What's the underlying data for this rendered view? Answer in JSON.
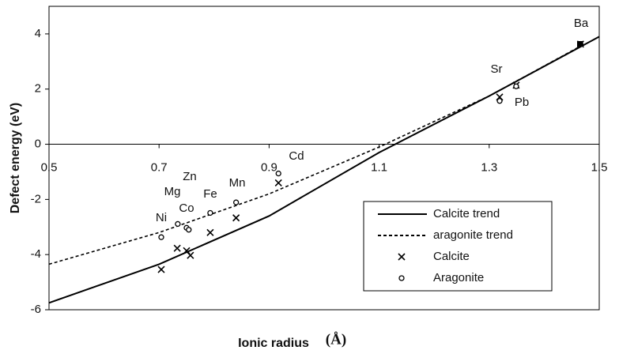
{
  "chart_data": {
    "type": "scatter",
    "xlabel": "Ionic radius",
    "xlabel_unit": "(Å)",
    "ylabel": "Defect energy (eV)",
    "xlim": [
      0.5,
      1.5
    ],
    "ylim": [
      -6,
      5
    ],
    "xticks": [
      0.5,
      0.7,
      0.9,
      1.1,
      1.3,
      1.5
    ],
    "yticks": [
      -6,
      -4,
      -2,
      0,
      2,
      4
    ],
    "series": [
      {
        "name": "Calcite trend",
        "color": "#000000",
        "style": "solid",
        "x": [
          0.5,
          0.7,
          0.9,
          1.1,
          1.3,
          1.5
        ],
        "values": [
          -5.75,
          -4.35,
          -2.6,
          -0.3,
          1.75,
          3.9
        ]
      },
      {
        "name": "aragonite trend",
        "color": "#000000",
        "style": "dashed",
        "x": [
          0.5,
          0.7,
          0.9,
          1.1,
          1.3,
          1.47
        ],
        "values": [
          -4.35,
          -3.2,
          -1.8,
          -0.1,
          1.75,
          3.6
        ]
      },
      {
        "name": "Calcite",
        "color": "#000000",
        "marker": "x",
        "x": [
          0.704,
          0.733,
          0.75,
          0.757,
          0.793,
          0.84,
          0.917,
          1.319,
          1.349,
          1.466
        ],
        "values": [
          -4.54,
          -3.77,
          -3.86,
          -4.03,
          -3.2,
          -2.67,
          -1.4,
          1.71,
          2.14,
          3.63
        ]
      },
      {
        "name": "Aragonite",
        "color": "#000000",
        "marker": "circle",
        "x": [
          0.704,
          0.734,
          0.75,
          0.754,
          0.793,
          0.84,
          0.917,
          1.319,
          1.349,
          1.466
        ],
        "values": [
          -3.37,
          -2.89,
          -3.03,
          -3.1,
          -2.49,
          -2.11,
          -1.06,
          1.57,
          2.1,
          3.63
        ]
      }
    ],
    "annotations": [
      "Ba",
      "Sr",
      "Pb",
      "Cd",
      "Mn",
      "Fe",
      "Zn",
      "Mg",
      "Co",
      "Ni"
    ]
  }
}
